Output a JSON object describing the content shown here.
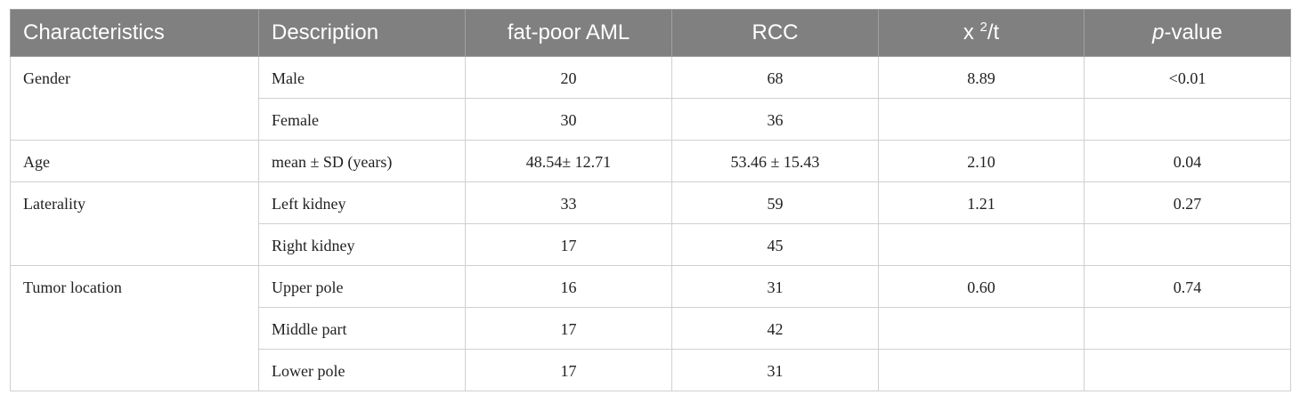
{
  "table": {
    "headers": {
      "characteristics": "Characteristics",
      "description": "Description",
      "fat_poor_aml": "fat-poor AML",
      "rcc": "RCC",
      "chi_t_base": "x ",
      "chi_t_sup": "2",
      "chi_t_rest": "/t",
      "p_italic": "p",
      "p_rest": "-value"
    },
    "rows": [
      {
        "characteristic": "Gender",
        "description": "Male",
        "aml": "20",
        "rcc": "68",
        "stat": "8.89",
        "p": "<0.01"
      },
      {
        "characteristic": "",
        "description": "Female",
        "aml": "30",
        "rcc": "36",
        "stat": "",
        "p": ""
      },
      {
        "characteristic": "Age",
        "description": "mean ± SD (years)",
        "aml": "48.54± 12.71",
        "rcc": "53.46 ± 15.43",
        "stat": "2.10",
        "p": "0.04"
      },
      {
        "characteristic": "Laterality",
        "description": "Left kidney",
        "aml": "33",
        "rcc": "59",
        "stat": "1.21",
        "p": "0.27"
      },
      {
        "characteristic": "",
        "description": "Right kidney",
        "aml": "17",
        "rcc": "45",
        "stat": "",
        "p": ""
      },
      {
        "characteristic": "Tumor location",
        "description": "Upper pole",
        "aml": "16",
        "rcc": "31",
        "stat": "0.60",
        "p": "0.74"
      },
      {
        "characteristic": "",
        "description": "Middle part",
        "aml": "17",
        "rcc": "42",
        "stat": "",
        "p": ""
      },
      {
        "characteristic": "",
        "description": "Lower pole",
        "aml": "17",
        "rcc": "31",
        "stat": "",
        "p": ""
      }
    ]
  }
}
